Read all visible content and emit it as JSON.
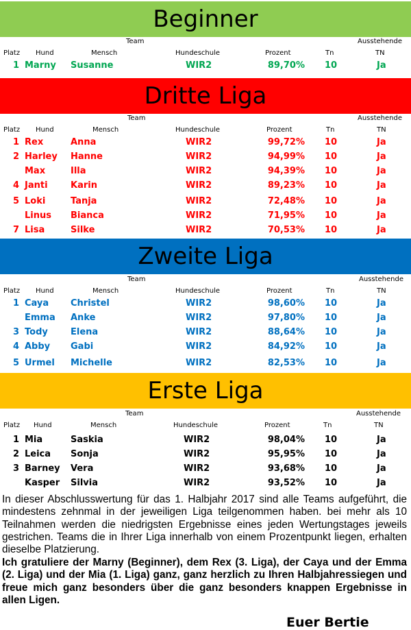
{
  "colors": {
    "beginner_banner": "#8fcc52",
    "dritte_banner": "#ff0000",
    "zweite_banner": "#0070c0",
    "erste_banner": "#ffc000",
    "beginner_text": "#00a651",
    "dritte_text": "#ff0000",
    "zweite_text": "#0070c0",
    "erste_text": "#000000"
  },
  "headers": {
    "team": "Team",
    "ausstehende": "Ausstehende",
    "platz": "Platz",
    "hund": "Hund",
    "mensch": "Mensch",
    "hundeschule": "Hundeschule",
    "prozent": "Prozent",
    "tn": "Tn",
    "tn_caps": "TN"
  },
  "leagues": [
    {
      "title": "Beginner",
      "rows": [
        {
          "place": "1",
          "dog": "Marny",
          "human": "Susanne",
          "school": "WIR2",
          "pct": "89,70%",
          "tn": "10",
          "flag": "Ja"
        }
      ]
    },
    {
      "title": "Dritte Liga",
      "rows": [
        {
          "place": "1",
          "dog": "Rex",
          "human": "Anna",
          "school": "WIR2",
          "pct": "99,72%",
          "tn": "10",
          "flag": "Ja"
        },
        {
          "place": "2",
          "dog": "Harley",
          "human": "Hanne",
          "school": "WIR2",
          "pct": "94,99%",
          "tn": "10",
          "flag": "Ja"
        },
        {
          "place": "",
          "dog": "Max",
          "human": "Illa",
          "school": "WIR2",
          "pct": "94,39%",
          "tn": "10",
          "flag": "Ja"
        },
        {
          "place": "4",
          "dog": "Janti",
          "human": "Karin",
          "school": "WIR2",
          "pct": "89,23%",
          "tn": "10",
          "flag": "Ja"
        },
        {
          "place": "5",
          "dog": "Loki",
          "human": "Tanja",
          "school": "WIR2",
          "pct": "72,48%",
          "tn": "10",
          "flag": "Ja"
        },
        {
          "place": "",
          "dog": "Linus",
          "human": "Bianca",
          "school": "WIR2",
          "pct": "71,95%",
          "tn": "10",
          "flag": "Ja"
        },
        {
          "place": "7",
          "dog": "Lisa",
          "human": "Silke",
          "school": "WIR2",
          "pct": "70,53%",
          "tn": "10",
          "flag": "Ja"
        }
      ]
    },
    {
      "title": "Zweite Liga",
      "rows": [
        {
          "place": "1",
          "dog": "Caya",
          "human": "Christel",
          "school": "WIR2",
          "pct": "98,60%",
          "tn": "10",
          "flag": "Ja"
        },
        {
          "place": "",
          "dog": "Emma",
          "human": "Anke",
          "school": "WIR2",
          "pct": "97,80%",
          "tn": "10",
          "flag": "Ja"
        },
        {
          "place": "3",
          "dog": "Tody",
          "human": "Elena",
          "school": "WIR2",
          "pct": "88,64%",
          "tn": "10",
          "flag": "Ja"
        },
        {
          "place": "4",
          "dog": "Abby",
          "human": "Gabi",
          "school": "WIR2",
          "pct": "84,92%",
          "tn": "10",
          "flag": "Ja"
        },
        {
          "place": "5",
          "dog": "Urmel",
          "human": "Michelle",
          "school": "WIR2",
          "pct": "82,53%",
          "tn": "10",
          "flag": "Ja"
        }
      ]
    },
    {
      "title": "Erste Liga",
      "rows": [
        {
          "place": "1",
          "dog": "Mia",
          "human": "Saskia",
          "school": "WIR2",
          "pct": "98,04%",
          "tn": "10",
          "flag": "Ja"
        },
        {
          "place": "2",
          "dog": "Leica",
          "human": "Sonja",
          "school": "WIR2",
          "pct": "95,95%",
          "tn": "10",
          "flag": "Ja"
        },
        {
          "place": "3",
          "dog": "Barney",
          "human": "Vera",
          "school": "WIR2",
          "pct": "93,68%",
          "tn": "10",
          "flag": "Ja"
        },
        {
          "place": "",
          "dog": "Kasper",
          "human": "Silvia",
          "school": "WIR2",
          "pct": "93,52%",
          "tn": "10",
          "flag": "Ja"
        }
      ]
    }
  ],
  "paragraph1": "In dieser Abschlusswertung für das 1. Halbjahr 2017 sind alle Teams aufgeführt, die mindestens zehnmal in der jeweiligen Liga teilgenommen haben. bei mehr als 10 Teilnahmen werden die niedrigsten Ergebnisse eines jeden Wertungstages jeweils gestrichen. Teams die in Ihrer Liga innerhalb von einem Prozentpunkt liegen, erhalten dieselbe Platzierung.",
  "paragraph2": "Ich gratuliere der Marny (Beginner), dem Rex (3. Liga), der Caya und der Emma (2. Liga) und der Mia (1. Liga) ganz, ganz herzlich zu Ihren Halbjahressiegen und freue mich ganz besonders über die ganz besonders knappen Ergebnisse in allen Ligen.",
  "signature": "Euer Bertie"
}
